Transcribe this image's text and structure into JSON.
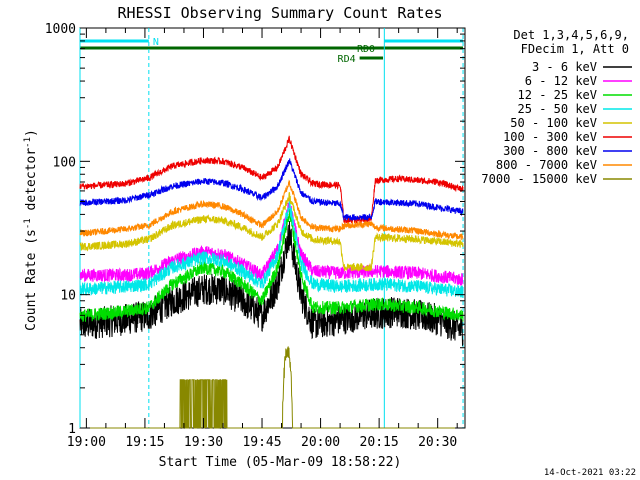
{
  "chart_data": {
    "type": "line",
    "title": "RHESSI Observing Summary Count Rates",
    "xlabel": "Start Time (05-Mar-09 18:58:22)",
    "ylabel": "Count Rate (s",
    "ylabel_sup1": "-1",
    "ylabel_mid": " detector",
    "ylabel_sup2": "-1",
    "ylabel_end": ")",
    "yscale": "log",
    "xlim": [
      "18:58:22",
      "20:37:00"
    ],
    "ylim": [
      1,
      1000
    ],
    "x_tick_labels": [
      "19:00",
      "19:15",
      "19:30",
      "19:45",
      "20:00",
      "20:15",
      "20:30"
    ],
    "y_tick_labels": [
      "1",
      "10",
      "100",
      "1000"
    ],
    "legend": {
      "placement": "right",
      "header": [
        "Det 1,3,4,5,6,9,",
        "FDecim 1, Att 0"
      ],
      "entries": [
        {
          "label": "3 - 6 keV",
          "color": "#000000"
        },
        {
          "label": "6 - 12 keV",
          "color": "#ff00ff"
        },
        {
          "label": "12 - 25 keV",
          "color": "#00dd00"
        },
        {
          "label": "25 - 50 keV",
          "color": "#00e8e8"
        },
        {
          "label": "50 - 100 keV",
          "color": "#d4c400"
        },
        {
          "label": "100 - 300 keV",
          "color": "#ee0000"
        },
        {
          "label": "300 - 800 keV",
          "color": "#0000ee"
        },
        {
          "label": "800 - 7000 keV",
          "color": "#ff8800"
        },
        {
          "label": "7000 - 15000 keV",
          "color": "#888800"
        }
      ]
    },
    "flags": [
      {
        "label": "N",
        "start": "18:58:22",
        "end": "19:16:00",
        "level": "top",
        "color": "#00e0f0"
      },
      {
        "label": "",
        "start": "20:16:20",
        "end": "20:36:30",
        "level": "top",
        "color": "#00e0f0"
      },
      {
        "label": "RD0",
        "start": "18:58:22",
        "end": "20:36:30",
        "level": "upper",
        "color": "#006600"
      },
      {
        "label": "RD4",
        "start": "20:10:00",
        "end": "20:16:00",
        "level": "lower",
        "color": "#006600"
      }
    ],
    "vertical_markers": [
      {
        "time": "18:58:22",
        "style": "solid"
      },
      {
        "time": "19:16:00",
        "style": "dashed"
      },
      {
        "time": "20:16:20",
        "style": "solid"
      },
      {
        "time": "20:36:30",
        "style": "dashed"
      }
    ],
    "series": [
      {
        "name": "3 - 6 keV",
        "color": "#000000",
        "noise": 0.12,
        "points": [
          [
            "19:00",
            6
          ],
          [
            "19:10",
            6.5
          ],
          [
            "19:16",
            7
          ],
          [
            "19:22",
            9
          ],
          [
            "19:30",
            11
          ],
          [
            "19:35",
            11
          ],
          [
            "19:40",
            9
          ],
          [
            "19:45",
            7
          ],
          [
            "19:49",
            12
          ],
          [
            "19:52",
            29
          ],
          [
            "19:55",
            10
          ],
          [
            "19:58",
            6
          ],
          [
            "20:05",
            6.5
          ],
          [
            "20:10",
            7
          ],
          [
            "20:20",
            7.5
          ],
          [
            "20:30",
            6.5
          ],
          [
            "20:36",
            5.5
          ]
        ]
      },
      {
        "name": "6 - 12 keV",
        "color": "#ff00ff",
        "noise": 0.05,
        "points": [
          [
            "19:00",
            14
          ],
          [
            "19:10",
            14
          ],
          [
            "19:16",
            14.5
          ],
          [
            "19:22",
            18
          ],
          [
            "19:30",
            21
          ],
          [
            "19:35",
            20
          ],
          [
            "19:40",
            17
          ],
          [
            "19:45",
            14
          ],
          [
            "19:49",
            22
          ],
          [
            "19:52",
            48
          ],
          [
            "19:55",
            20
          ],
          [
            "19:58",
            15
          ],
          [
            "20:05",
            14.5
          ],
          [
            "20:15",
            15
          ],
          [
            "20:25",
            14.5
          ],
          [
            "20:36",
            13
          ]
        ]
      },
      {
        "name": "12 - 25 keV",
        "color": "#00dd00",
        "noise": 0.05,
        "points": [
          [
            "19:00",
            7
          ],
          [
            "19:10",
            7.5
          ],
          [
            "19:16",
            8
          ],
          [
            "19:22",
            12
          ],
          [
            "19:30",
            16
          ],
          [
            "19:35",
            15
          ],
          [
            "19:40",
            12
          ],
          [
            "19:45",
            9
          ],
          [
            "19:49",
            16
          ],
          [
            "19:52",
            42
          ],
          [
            "19:55",
            14
          ],
          [
            "19:58",
            8
          ],
          [
            "20:05",
            8
          ],
          [
            "20:15",
            8.5
          ],
          [
            "20:25",
            8
          ],
          [
            "20:36",
            7
          ]
        ]
      },
      {
        "name": "25 - 50 keV",
        "color": "#00e8e8",
        "noise": 0.05,
        "points": [
          [
            "19:00",
            11
          ],
          [
            "19:10",
            11.5
          ],
          [
            "19:16",
            12
          ],
          [
            "19:22",
            16
          ],
          [
            "19:30",
            19
          ],
          [
            "19:35",
            18
          ],
          [
            "19:40",
            15
          ],
          [
            "19:45",
            12
          ],
          [
            "19:49",
            20
          ],
          [
            "19:52",
            48
          ],
          [
            "19:55",
            17
          ],
          [
            "19:58",
            12
          ],
          [
            "20:05",
            11.5
          ],
          [
            "20:15",
            12
          ],
          [
            "20:25",
            11.5
          ],
          [
            "20:36",
            10.5
          ]
        ]
      },
      {
        "name": "50 - 100 keV",
        "color": "#d4c400",
        "noise": 0.03,
        "points": [
          [
            "19:00",
            23
          ],
          [
            "19:10",
            24
          ],
          [
            "19:16",
            26
          ],
          [
            "19:22",
            33
          ],
          [
            "19:30",
            37
          ],
          [
            "19:35",
            36
          ],
          [
            "19:40",
            32
          ],
          [
            "19:45",
            27
          ],
          [
            "19:49",
            34
          ],
          [
            "19:52",
            55
          ],
          [
            "19:55",
            30
          ],
          [
            "19:58",
            26
          ],
          [
            "20:05",
            25
          ],
          [
            "20:06",
            16
          ],
          [
            "20:13",
            16
          ],
          [
            "20:14",
            27
          ],
          [
            "20:25",
            26
          ],
          [
            "20:36",
            24
          ]
        ]
      },
      {
        "name": "100 - 300 keV",
        "color": "#ee0000",
        "noise": 0.025,
        "points": [
          [
            "19:00",
            65
          ],
          [
            "19:10",
            68
          ],
          [
            "19:16",
            75
          ],
          [
            "19:22",
            92
          ],
          [
            "19:30",
            102
          ],
          [
            "19:35",
            100
          ],
          [
            "19:40",
            90
          ],
          [
            "19:45",
            75
          ],
          [
            "19:49",
            90
          ],
          [
            "19:52",
            148
          ],
          [
            "19:55",
            80
          ],
          [
            "19:58",
            68
          ],
          [
            "20:05",
            66
          ],
          [
            "20:06",
            36
          ],
          [
            "20:13",
            37
          ],
          [
            "20:14",
            72
          ],
          [
            "20:20",
            74
          ],
          [
            "20:30",
            70
          ],
          [
            "20:36",
            62
          ]
        ]
      },
      {
        "name": "300 - 800 keV",
        "color": "#0000ee",
        "noise": 0.025,
        "points": [
          [
            "19:00",
            49
          ],
          [
            "19:10",
            51
          ],
          [
            "19:16",
            56
          ],
          [
            "19:22",
            65
          ],
          [
            "19:30",
            71
          ],
          [
            "19:35",
            69
          ],
          [
            "19:40",
            62
          ],
          [
            "19:45",
            53
          ],
          [
            "19:49",
            65
          ],
          [
            "19:52",
            102
          ],
          [
            "19:55",
            58
          ],
          [
            "19:58",
            50
          ],
          [
            "20:05",
            48
          ],
          [
            "20:06",
            38
          ],
          [
            "20:13",
            38
          ],
          [
            "20:14",
            50
          ],
          [
            "20:25",
            48
          ],
          [
            "20:36",
            42
          ]
        ]
      },
      {
        "name": "800 - 7000 keV",
        "color": "#ff8800",
        "noise": 0.025,
        "points": [
          [
            "19:00",
            29
          ],
          [
            "19:10",
            31
          ],
          [
            "19:16",
            33
          ],
          [
            "19:22",
            42
          ],
          [
            "19:30",
            48
          ],
          [
            "19:35",
            46
          ],
          [
            "19:40",
            40
          ],
          [
            "19:45",
            33
          ],
          [
            "19:49",
            42
          ],
          [
            "19:52",
            70
          ],
          [
            "19:55",
            38
          ],
          [
            "19:58",
            32
          ],
          [
            "20:05",
            31
          ],
          [
            "20:06",
            33
          ],
          [
            "20:13",
            34
          ],
          [
            "20:14",
            32
          ],
          [
            "20:25",
            30
          ],
          [
            "20:36",
            27
          ]
        ]
      },
      {
        "name": "7000 - 15000 keV",
        "color": "#888800",
        "noise": 0,
        "burst1": {
          "start": "19:24",
          "end": "19:36",
          "peak": 2.3
        },
        "burst2": {
          "start": "19:50",
          "end": "19:53",
          "peak": 3.8
        }
      }
    ]
  },
  "footer": {
    "timestamp": "14-Oct-2021 03:22"
  }
}
